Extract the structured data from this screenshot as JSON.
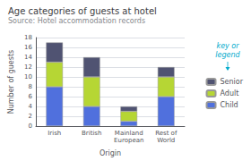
{
  "chart_data": {
    "type": "bar",
    "title": "Age categories of guests at hotel",
    "subtitle": "Source: Hotel accommodation records",
    "xlabel": "Origin",
    "ylabel": "Number of guests",
    "categories": [
      "Irish",
      "British",
      "Mainland\nEuropean",
      "Rest of\nWorld"
    ],
    "series": [
      {
        "name": "Child",
        "values": [
          8,
          4,
          1,
          6
        ]
      },
      {
        "name": "Adult",
        "values": [
          5,
          6,
          2,
          4
        ]
      },
      {
        "name": "Senior",
        "values": [
          4,
          4,
          1,
          2
        ]
      }
    ],
    "ylim": [
      0,
      18
    ],
    "yticks": [
      0,
      2,
      4,
      6,
      8,
      10,
      12,
      14,
      16,
      18
    ],
    "grid": true,
    "stacked": true,
    "legend": "right",
    "annotation": "key or\nlegend"
  }
}
